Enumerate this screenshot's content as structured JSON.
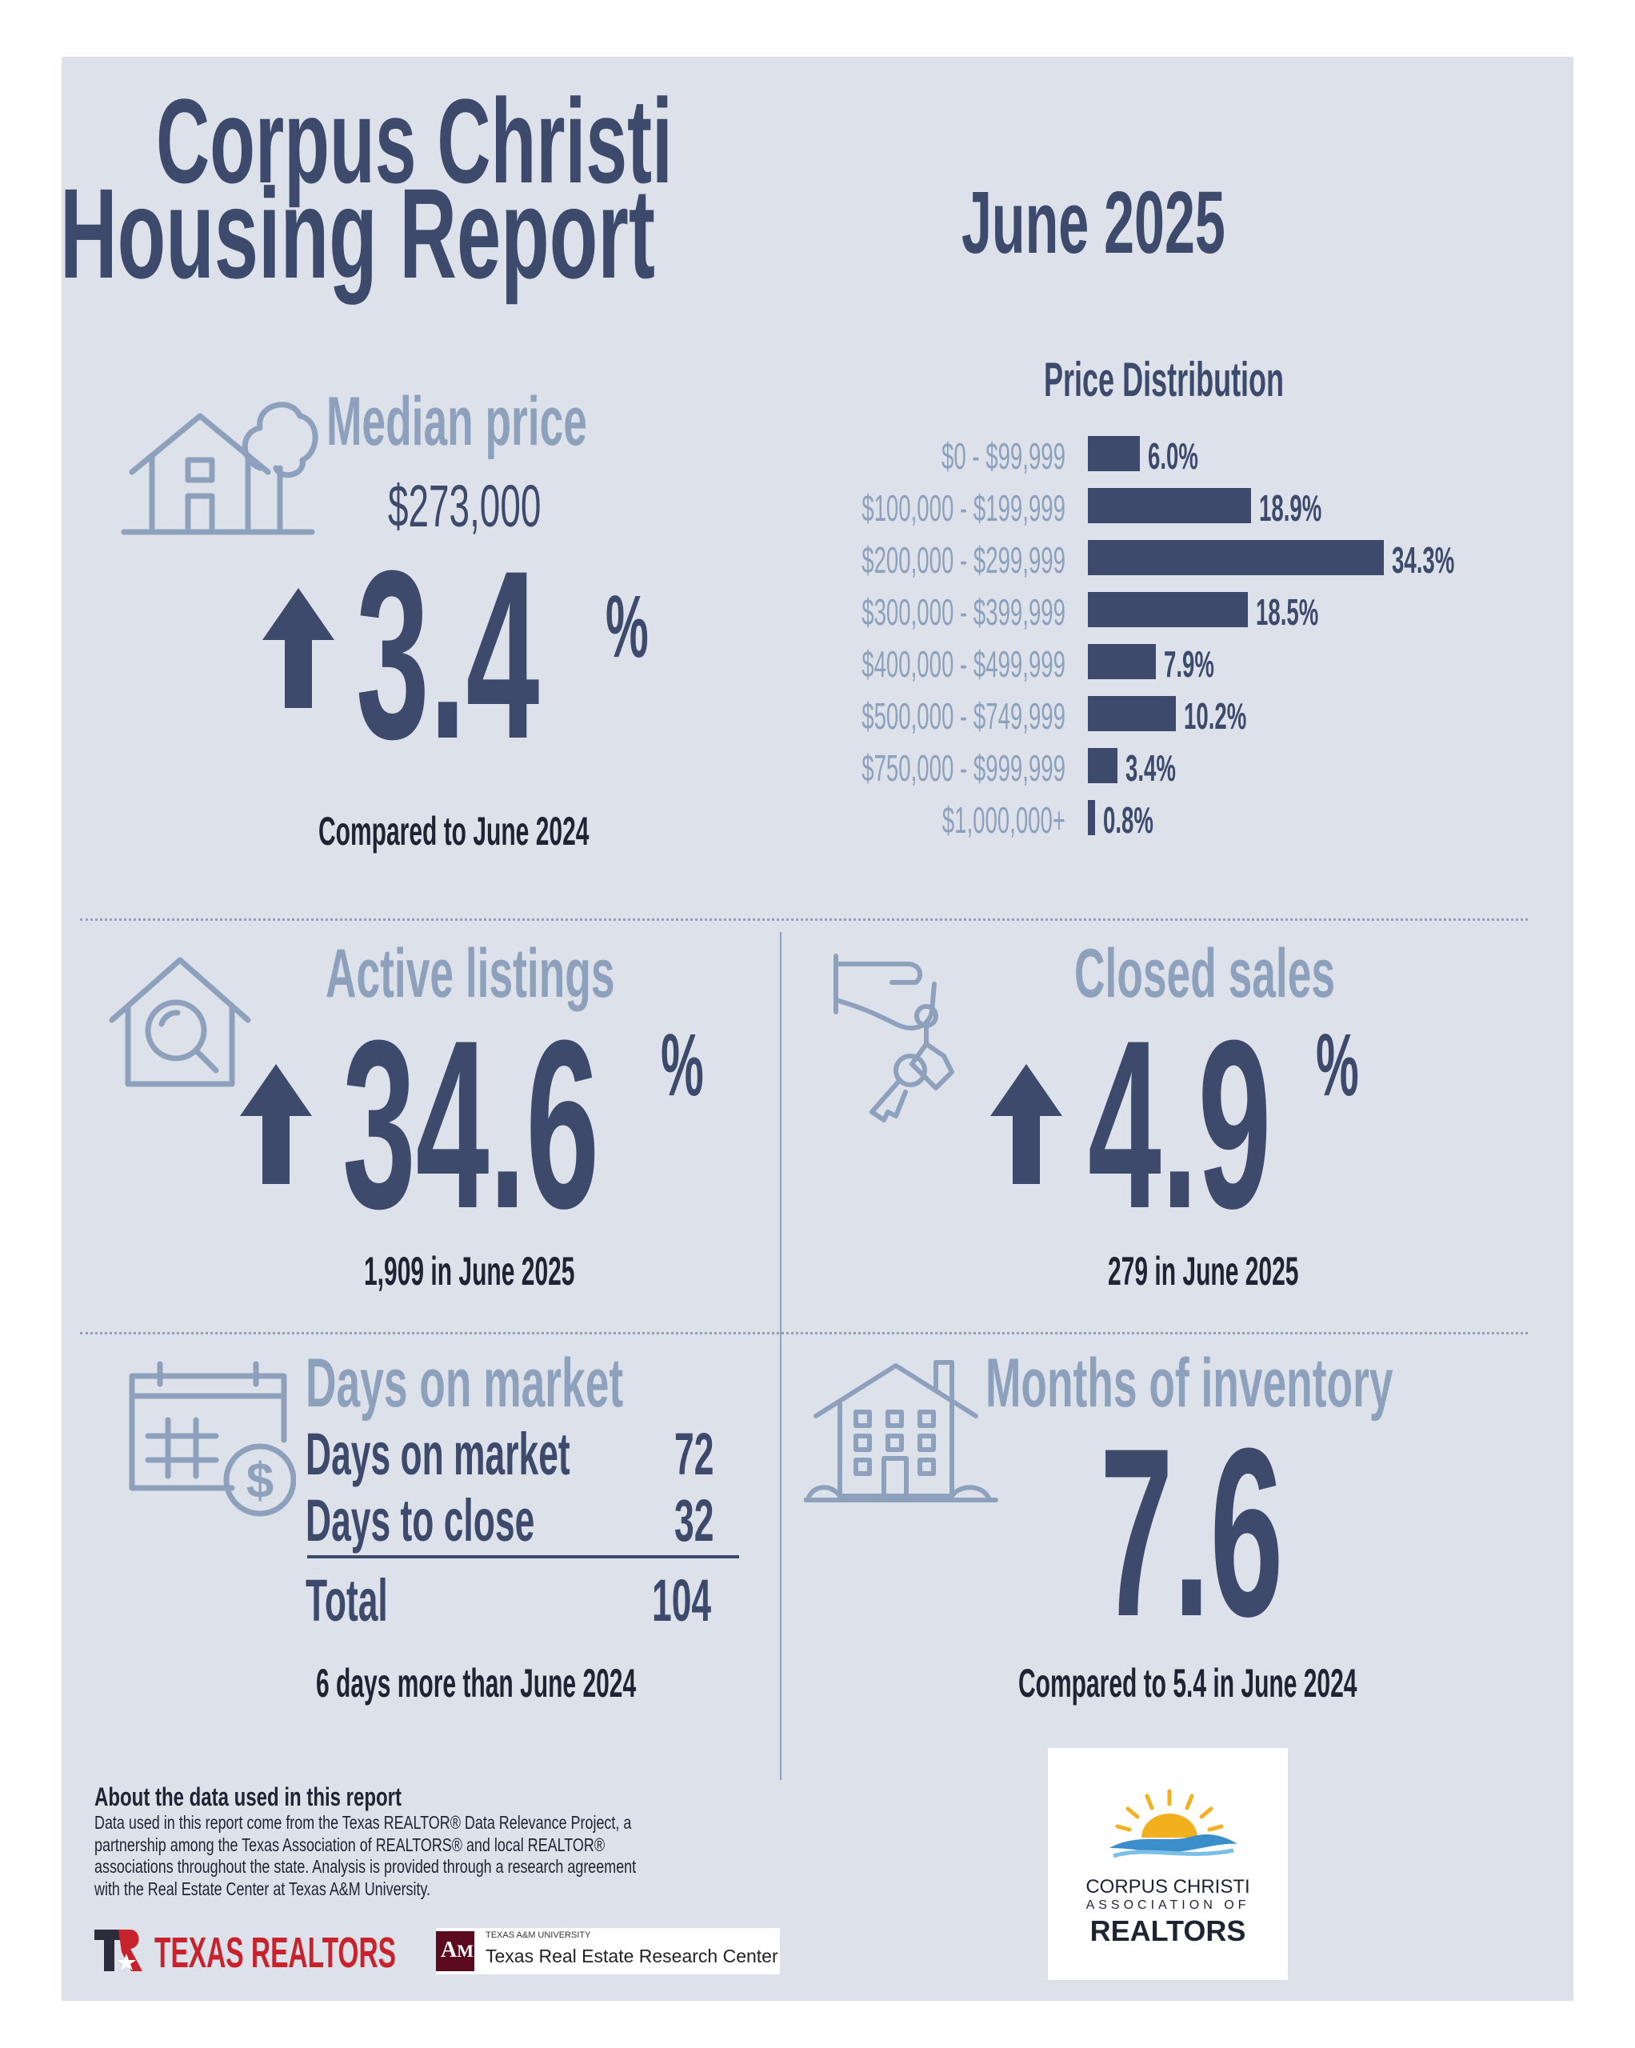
{
  "header": {
    "title_line1": "Corpus Christi",
    "title_line2": "Housing Report",
    "month": "June 2025"
  },
  "median": {
    "title": "Median price",
    "price": "$273,000",
    "change": "3.4",
    "pct": "%",
    "caption": "Compared to June 2024",
    "icon": "house-tree-icon"
  },
  "chart_data": {
    "type": "bar",
    "title": "Price Distribution",
    "orientation": "horizontal",
    "categories": [
      "$0 - $99,999",
      "$100,000 - $199,999",
      "$200,000 - $299,999",
      "$300,000 - $399,999",
      "$400,000 - $499,999",
      "$500,000 - $749,999",
      "$750,000 - $999,999",
      "$1,000,000+"
    ],
    "values": [
      6.0,
      18.9,
      34.3,
      18.5,
      7.9,
      10.2,
      3.4,
      0.8
    ],
    "value_labels": [
      "6.0%",
      "18.9%",
      "34.3%",
      "18.5%",
      "7.9%",
      "10.2%",
      "3.4%",
      "0.8%"
    ],
    "xlim": [
      0,
      34.3
    ],
    "grid": false
  },
  "active": {
    "title": "Active listings",
    "change": "34.6",
    "pct": "%",
    "caption": "1,909 in June 2025",
    "icon": "house-search-icon"
  },
  "closed": {
    "title": "Closed sales",
    "change": "4.9",
    "pct": "%",
    "caption": "279 in June 2025",
    "icon": "hand-keys-icon"
  },
  "dom": {
    "title": "Days on market",
    "rows": [
      {
        "label": "Days on market",
        "value": "72"
      },
      {
        "label": "Days to close",
        "value": "32"
      }
    ],
    "total_label": "Total",
    "total_value": "104",
    "caption": "6 days more than June 2024",
    "icon": "calendar-dollar-icon"
  },
  "inventory": {
    "title": "Months of inventory",
    "value": "7.6",
    "caption": "Compared to 5.4 in June 2024",
    "icon": "building-icon"
  },
  "footer": {
    "about_title": "About the data used in this report",
    "about_lines": [
      "Data used in this report come from the Texas REALTOR® Data Relevance Project, a",
      "partnership among the Texas Association of REALTORS® and local REALTOR®",
      "associations throughout the state. Analysis is provided through a research agreement",
      "with the Real Estate Center at Texas A&M University."
    ],
    "texas_realtors": "TEXAS REALTORS",
    "tamu_small": "TEXAS A&M UNIVERSITY",
    "tamu_center": "Texas Real Estate Research Center",
    "ccar_line1": "CORPUS CHRISTI",
    "ccar_line2": "ASSOCIATION OF",
    "ccar_line3": "REALTORS"
  },
  "colors": {
    "navy": "#3e4a6c",
    "light": "#8ea1bc",
    "panel": "#dde1ea"
  }
}
